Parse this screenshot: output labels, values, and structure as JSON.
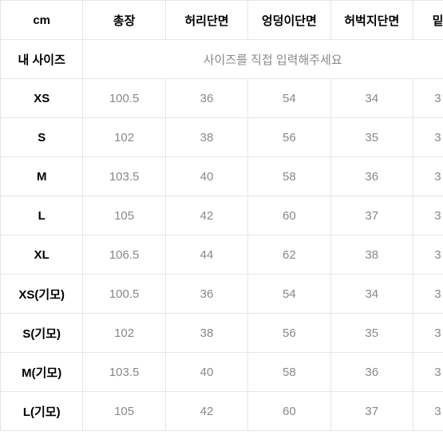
{
  "table": {
    "unit_label": "cm",
    "columns": [
      "총장",
      "허리단면",
      "엉덩이단면",
      "허벅지단면",
      "밑"
    ],
    "my_size_label": "내 사이즈",
    "my_size_placeholder": "사이즈를 직접 입력해주세요",
    "rows": [
      {
        "label": "XS",
        "values": [
          "100.5",
          "36",
          "54",
          "34",
          "3"
        ]
      },
      {
        "label": "S",
        "values": [
          "102",
          "38",
          "56",
          "35",
          "3"
        ]
      },
      {
        "label": "M",
        "values": [
          "103.5",
          "40",
          "58",
          "36",
          "3"
        ]
      },
      {
        "label": "L",
        "values": [
          "105",
          "42",
          "60",
          "37",
          "3"
        ]
      },
      {
        "label": "XL",
        "values": [
          "106.5",
          "44",
          "62",
          "38",
          "3"
        ]
      },
      {
        "label": "XS(기모)",
        "values": [
          "100.5",
          "36",
          "54",
          "34",
          "3"
        ]
      },
      {
        "label": "S(기모)",
        "values": [
          "102",
          "38",
          "56",
          "35",
          "3"
        ]
      },
      {
        "label": "M(기모)",
        "values": [
          "103.5",
          "40",
          "58",
          "36",
          "3"
        ]
      },
      {
        "label": "L(기모)",
        "values": [
          "105",
          "42",
          "60",
          "37",
          "3"
        ]
      }
    ],
    "colors": {
      "border": "#e5e5e5",
      "header_text": "#000000",
      "label_text": "#000000",
      "data_text": "#888888",
      "background": "#ffffff"
    }
  }
}
